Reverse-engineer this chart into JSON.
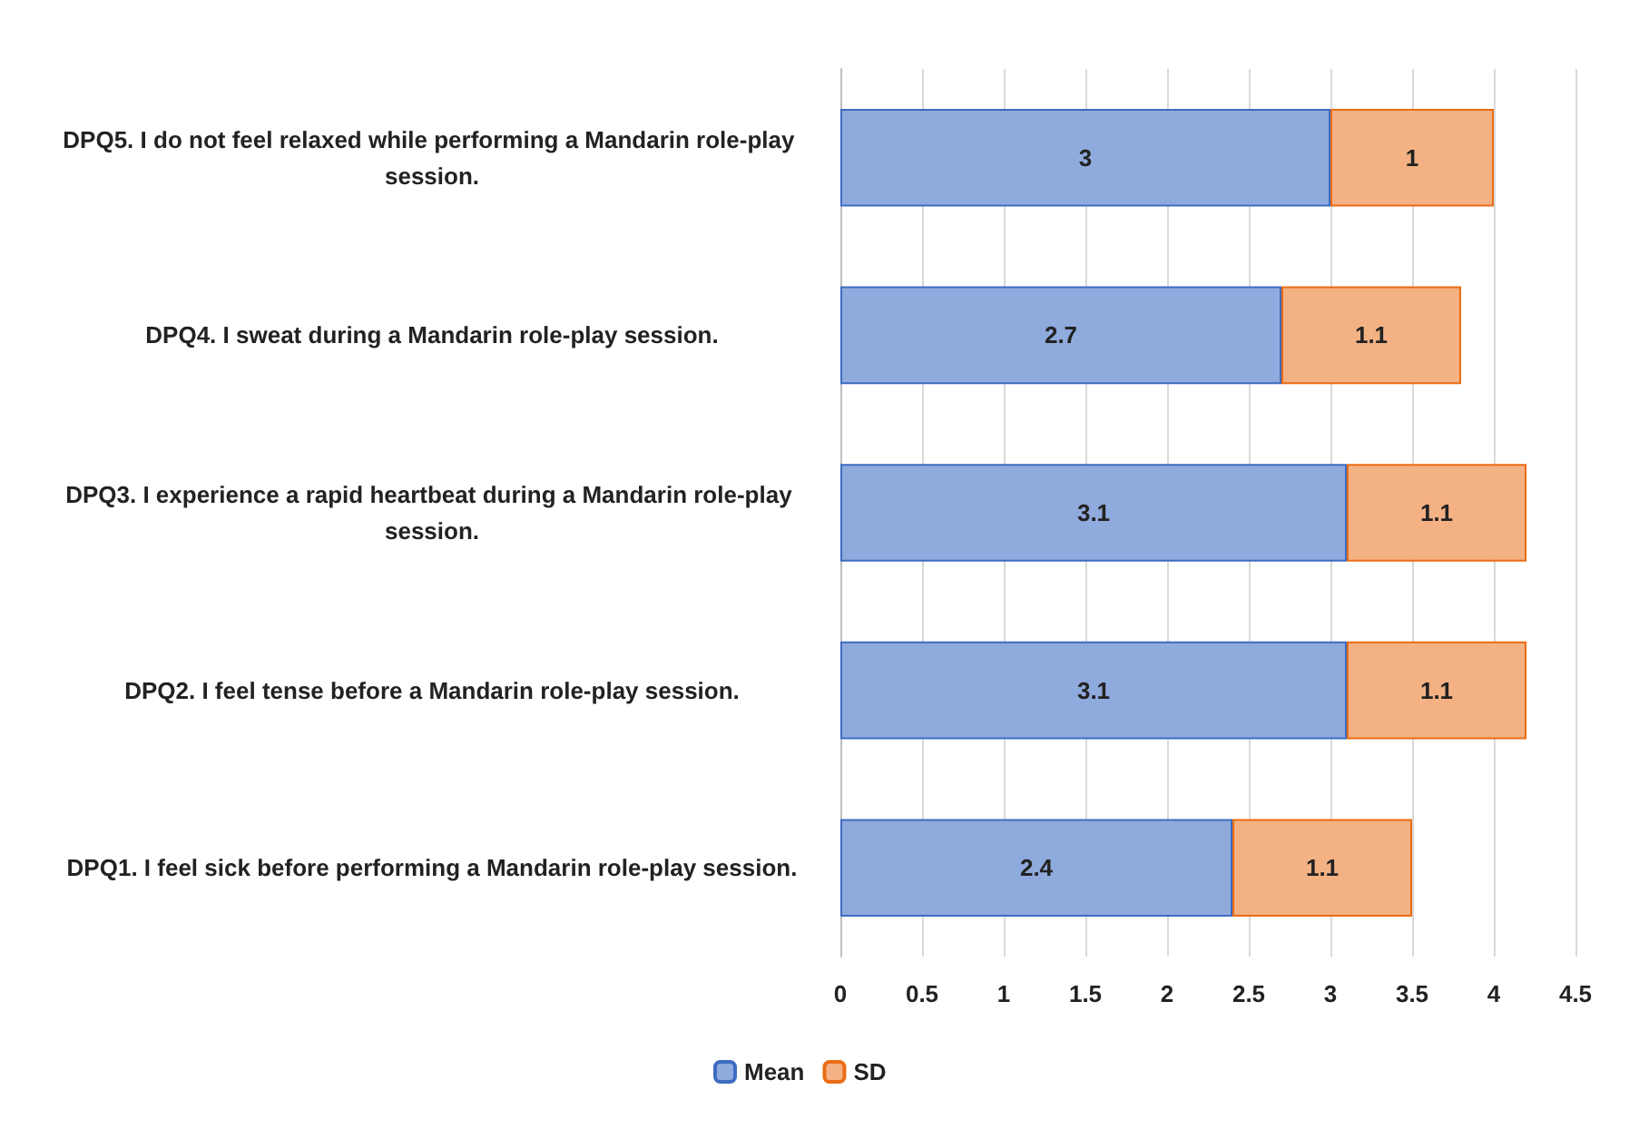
{
  "chart_data": {
    "type": "bar",
    "orientation": "horizontal",
    "stacked": true,
    "categories": [
      "DPQ5. I do not feel relaxed while performing a Mandarin role-play session.",
      "DPQ4. I sweat during a Mandarin role-play session.",
      "DPQ3. I experience a rapid heartbeat during a Mandarin role-play session.",
      "DPQ2. I feel tense before a Mandarin role-play session.",
      "DPQ1. I feel sick before performing a Mandarin role-play session."
    ],
    "series": [
      {
        "name": "Mean",
        "color": "#8faadc",
        "values": [
          3,
          2.7,
          3.1,
          3.1,
          2.4
        ]
      },
      {
        "name": "SD",
        "color": "#f4b183",
        "values": [
          1,
          1.1,
          1.1,
          1.1,
          1.1
        ]
      }
    ],
    "xlim": [
      0,
      4.5
    ],
    "xticks": [
      0,
      0.5,
      1,
      1.5,
      2,
      2.5,
      3,
      3.5,
      4,
      4.5
    ],
    "grid": "x",
    "legend": "bottom",
    "data_labels": true
  }
}
